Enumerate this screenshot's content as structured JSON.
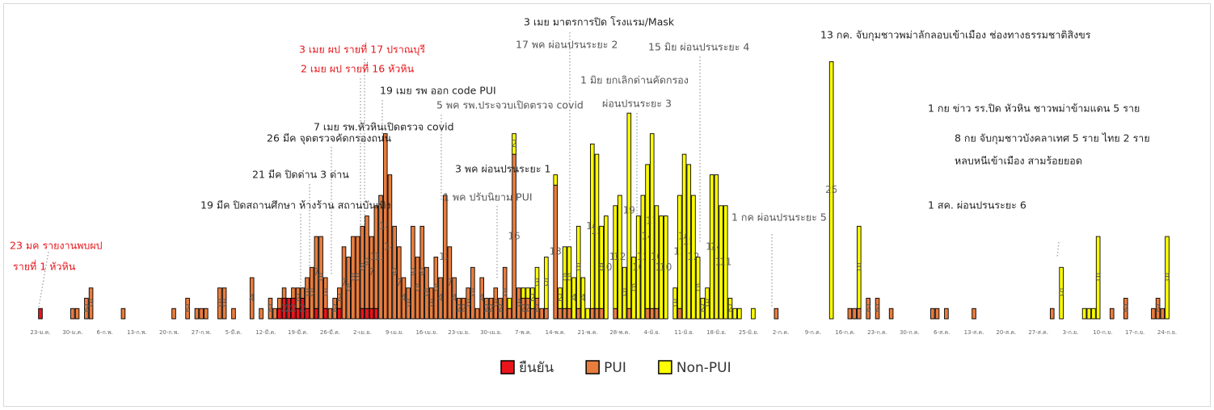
{
  "chart_data": {
    "type": "stacked-bar",
    "categories": [
      "23-ม.ค.",
      null,
      null,
      null,
      null,
      null,
      null,
      "30-ม.ค.",
      null,
      null,
      null,
      null,
      null,
      null,
      "6-ก.พ.",
      null,
      null,
      null,
      null,
      null,
      null,
      "13-ก.พ.",
      null,
      null,
      null,
      null,
      null,
      null,
      "20-ก.พ.",
      null,
      null,
      null,
      null,
      null,
      null,
      "27-ก.พ.",
      null,
      null,
      null,
      null,
      null,
      null,
      "5-มี.ค.",
      null,
      null,
      null,
      null,
      null,
      null,
      "12-มี.ค.",
      null,
      null,
      null,
      null,
      null,
      null,
      "19-มี.ค.",
      null,
      null,
      null,
      null,
      null,
      null,
      "26-มี.ค.",
      null,
      null,
      null,
      null,
      null,
      null,
      "2-เม.ย.",
      null,
      null,
      null,
      null,
      null,
      null,
      "9-เม.ย.",
      null,
      null,
      null,
      null,
      null,
      null,
      "16-เม.ย.",
      null,
      null,
      null,
      null,
      null,
      null,
      "23-เม.ย.",
      null,
      null,
      null,
      null,
      null,
      null,
      "30-เม.ย.",
      null,
      null,
      null,
      null,
      null,
      null,
      "7-พ.ค.",
      null,
      null,
      null,
      null,
      null,
      null,
      "14-พ.ค.",
      null,
      null,
      null,
      null,
      null,
      null,
      "21-พ.ค.",
      null,
      null,
      null,
      null,
      null,
      null,
      "28-พ.ค.",
      null,
      null,
      null,
      null,
      null,
      null,
      "4-มิ.ย.",
      null,
      null,
      null,
      null,
      null,
      null,
      "11-มิ.ย.",
      null,
      null,
      null,
      null,
      null,
      null,
      "18-มิ.ย.",
      null,
      null,
      null,
      null,
      null,
      null,
      "25-มิ.ย.",
      null,
      null,
      null,
      null,
      null,
      null,
      "2-ก.ค.",
      null,
      null,
      null,
      null,
      null,
      null,
      "9-ก.ค.",
      null,
      null,
      null,
      null,
      null,
      null,
      "16-ก.ค.",
      null,
      null,
      null,
      null,
      null,
      null,
      "23-ก.ค.",
      null,
      null,
      null,
      null,
      null,
      null,
      "30-ก.ค.",
      null,
      null,
      null,
      null,
      null,
      null,
      "6-ส.ค.",
      null,
      null,
      null,
      null,
      null,
      null,
      "13-ส.ค.",
      null,
      null,
      null,
      null,
      null,
      null,
      "20-ส.ค.",
      null,
      null,
      null,
      null,
      null,
      null,
      "27-ส.ค.",
      null,
      null,
      null,
      null,
      null,
      null,
      "3-ก.ย.",
      null,
      null,
      null,
      null,
      null,
      null,
      "10-ก.ย.",
      null,
      null,
      null,
      null,
      null,
      null,
      "17-ก.ย.",
      null,
      null,
      null,
      null,
      null,
      null,
      "24-ก.ย."
    ],
    "series": [
      {
        "name": "ยืนยัน",
        "color": "#e8151b",
        "values": [
          1,
          null,
          null,
          null,
          null,
          null,
          null,
          null,
          null,
          null,
          null,
          null,
          null,
          null,
          null,
          null,
          null,
          null,
          null,
          null,
          null,
          null,
          null,
          null,
          null,
          null,
          null,
          null,
          null,
          null,
          null,
          null,
          null,
          null,
          null,
          null,
          null,
          null,
          null,
          null,
          null,
          null,
          null,
          null,
          null,
          null,
          null,
          null,
          null,
          null,
          null,
          null,
          1,
          2,
          2,
          2,
          1,
          2,
          1,
          null,
          1,
          null,
          1,
          null,
          null,
          1,
          null,
          null,
          null,
          null,
          1,
          1,
          1,
          1,
          null,
          null,
          null,
          null,
          null,
          null,
          null,
          null,
          null,
          null,
          null,
          null,
          null,
          null,
          null,
          null,
          null,
          null,
          null,
          null,
          null,
          null,
          null,
          null,
          null,
          null,
          null,
          null,
          null,
          null,
          null,
          null,
          null,
          null,
          null,
          null,
          null,
          null,
          null,
          null,
          null,
          null,
          null,
          null,
          null,
          null,
          null,
          null,
          null,
          null,
          null,
          null,
          null,
          null,
          null,
          null,
          null,
          null,
          null,
          null,
          null,
          null,
          null,
          null,
          null,
          null,
          null,
          null,
          null,
          null,
          null,
          null,
          null,
          null,
          null,
          null,
          null,
          null,
          null,
          null,
          null,
          null,
          null,
          null,
          null,
          null,
          null,
          null,
          null,
          null,
          null,
          null,
          null,
          null,
          null,
          null,
          null,
          null,
          null,
          null,
          null,
          null,
          null,
          null,
          null,
          null,
          null,
          null,
          null,
          null,
          null,
          null,
          null,
          null,
          null,
          null,
          null,
          null,
          null,
          null,
          null,
          null,
          null,
          null,
          null,
          null,
          null,
          null,
          null,
          null,
          null,
          null,
          null,
          null,
          null,
          null,
          null,
          null,
          null,
          null,
          null,
          null,
          null,
          null,
          null,
          null,
          null,
          null,
          null,
          null,
          null,
          null,
          null,
          null,
          null,
          null,
          null,
          null,
          null,
          null,
          null,
          null,
          null,
          null,
          null,
          null,
          null,
          null,
          null,
          null,
          null,
          null
        ]
      },
      {
        "name": "PUI",
        "color": "#e87d3e",
        "values": [
          null,
          null,
          null,
          null,
          null,
          null,
          null,
          1,
          1,
          null,
          2,
          3,
          null,
          null,
          null,
          null,
          null,
          null,
          1,
          null,
          null,
          null,
          null,
          null,
          null,
          null,
          null,
          null,
          null,
          1,
          null,
          null,
          2,
          null,
          1,
          1,
          1,
          null,
          null,
          3,
          3,
          null,
          1,
          null,
          null,
          null,
          4,
          null,
          1,
          null,
          2,
          1,
          1,
          1,
          null,
          1,
          2,
          1,
          3,
          5,
          7,
          8,
          3,
          1,
          2,
          2,
          7,
          6,
          8,
          8,
          8,
          9,
          7,
          10,
          12,
          18,
          14,
          9,
          7,
          4,
          3,
          9,
          6,
          9,
          5,
          3,
          6,
          4,
          12,
          7,
          4,
          2,
          2,
          3,
          5,
          1,
          4,
          2,
          2,
          3,
          2,
          5,
          1,
          16,
          3,
          2,
          2,
          1,
          2,
          1,
          1,
          null,
          13,
          1,
          1,
          1,
          null,
          1,
          null,
          null,
          1,
          1,
          1,
          null,
          null,
          1,
          null,
          null,
          1,
          null,
          null,
          null,
          1,
          1,
          1,
          null,
          null,
          null,
          null,
          1,
          null,
          null,
          null,
          null,
          null,
          null,
          null,
          null,
          null,
          null,
          null,
          null,
          null,
          null,
          null,
          null,
          null,
          null,
          null,
          null,
          1,
          null,
          null,
          null,
          null,
          null,
          null,
          null,
          null,
          null,
          null,
          null,
          null,
          null,
          null,
          null,
          1,
          1,
          1,
          null,
          2,
          null,
          2,
          null,
          null,
          1,
          null,
          null,
          null,
          null,
          null,
          null,
          null,
          null,
          1,
          1,
          null,
          1,
          null,
          null,
          null,
          null,
          null,
          1,
          null,
          null,
          null,
          null,
          null,
          null,
          null,
          null,
          null,
          null,
          null,
          null,
          null,
          null,
          null,
          null,
          1,
          null,
          null,
          null,
          null,
          null,
          null,
          null,
          null,
          null,
          null,
          null,
          null,
          1,
          null,
          null,
          2,
          null,
          null,
          null,
          null,
          null,
          1,
          2,
          1,
          null
        ]
      },
      {
        "name": "Non-PUI",
        "color": "#ffff00",
        "values": [
          null,
          null,
          null,
          null,
          null,
          null,
          null,
          null,
          null,
          null,
          null,
          null,
          null,
          null,
          null,
          null,
          null,
          null,
          null,
          null,
          null,
          null,
          null,
          null,
          null,
          null,
          null,
          null,
          null,
          null,
          null,
          null,
          null,
          null,
          null,
          null,
          null,
          null,
          null,
          null,
          null,
          null,
          null,
          null,
          null,
          null,
          null,
          null,
          null,
          null,
          null,
          null,
          null,
          null,
          null,
          null,
          null,
          null,
          null,
          null,
          null,
          null,
          null,
          null,
          null,
          null,
          null,
          null,
          null,
          null,
          null,
          null,
          null,
          null,
          null,
          null,
          null,
          null,
          null,
          null,
          null,
          null,
          null,
          null,
          null,
          null,
          null,
          null,
          null,
          null,
          null,
          null,
          null,
          null,
          null,
          null,
          null,
          null,
          null,
          null,
          null,
          null,
          1,
          2,
          null,
          1,
          1,
          2,
          3,
          null,
          5,
          null,
          1,
          2,
          6,
          6,
          4,
          8,
          4,
          1,
          16,
          15,
          8,
          10,
          null,
          10,
          12,
          5,
          19,
          6,
          10,
          12,
          14,
          17,
          10,
          10,
          10,
          null,
          3,
          11,
          16,
          15,
          12,
          6,
          2,
          3,
          14,
          14,
          11,
          11,
          2,
          1,
          1,
          null,
          null,
          1,
          null,
          null,
          null,
          null,
          null,
          null,
          null,
          null,
          null,
          null,
          null,
          null,
          null,
          null,
          null,
          null,
          25,
          null,
          null,
          null,
          null,
          null,
          8,
          null,
          null,
          null,
          null,
          null,
          null,
          null,
          null,
          null,
          null,
          null,
          null,
          null,
          null,
          null,
          null,
          null,
          null,
          null,
          null,
          null,
          null,
          null,
          null,
          null,
          null,
          null,
          null,
          null,
          null,
          null,
          null,
          null,
          null,
          null,
          null,
          null,
          null,
          null,
          null,
          null,
          null,
          null,
          5,
          null,
          null,
          null,
          null,
          1,
          1,
          1,
          8,
          null,
          null,
          null,
          null,
          null,
          null,
          null,
          null,
          null,
          null,
          null,
          null,
          null,
          null,
          8
        ]
      }
    ],
    "ylim": [
      0,
      31
    ],
    "annotations": [
      {
        "text": "23 มค รายงานพบผป",
        "color": "#e8151b"
      },
      {
        "text": "รายที่ 1 หัวหิน",
        "color": "#e8151b"
      },
      {
        "text": "19 มีค ปิดสถานศึกษา ห้างร้าน สถานบันเทิง",
        "color": "#222222"
      },
      {
        "text": "21 มีค ปิดด่าน 3 ด่าน",
        "color": "#222222"
      },
      {
        "text": "26 มีค จุดตรวจคัดกรองถนน",
        "color": "#222222"
      },
      {
        "text": "7 เมย รพ.หัวหินเปิดตรวจ covid",
        "color": "#222222"
      },
      {
        "text": "3 เมย ผป รายที่ 17 ปราณบุรี",
        "color": "#e8151b"
      },
      {
        "text": "2 เมย ผป รายที่ 16 หัวหิน",
        "color": "#e8151b"
      },
      {
        "text": "19 เมย รพ ออก code PUI",
        "color": "#222222"
      },
      {
        "text": "5 พค รพ.ประจวบเปิดตรวจ covid",
        "color": "#555555"
      },
      {
        "text": "1 พค ปรับนิยาม PUI",
        "color": "#555555"
      },
      {
        "text": "3 พค ผ่อนปรนระยะ 1",
        "color": "#222222"
      },
      {
        "text": "3 เมย มาตรการปิด โรงแรม/Mask",
        "color": "#222222"
      },
      {
        "text": "17 พค ผ่อนปรนระยะ 2",
        "color": "#555555"
      },
      {
        "text": "1 มิย ยกเลิกด่านคัดกรอง",
        "color": "#555555"
      },
      {
        "text": "ผ่อนปรนระยะ 3",
        "color": "#555555"
      },
      {
        "text": "15 มิย ผ่อนปรนระยะ 4",
        "color": "#555555"
      },
      {
        "text": "1 กค ผ่อนปรนระยะ 5",
        "color": "#555555"
      },
      {
        "text": "13 กค. จับกุมชาวพม่าลักลอบเข้าเมือง ช่องทางธรรมชาติสิงขร",
        "color": "#222222"
      },
      {
        "text": "1 กย ข่าว รร.ปิด หัวหิน ชาวพม่าข้ามแดน 5 ราย",
        "color": "#222222"
      },
      {
        "text": "8 กย จับกุมชาวบังคลาเทศ 5 ราย ไทย 2 ราย",
        "color": "#222222"
      },
      {
        "text": "หลบหนีเข้าเมือง สามร้อยยอด",
        "color": "#222222"
      },
      {
        "text": "1 สค. ผ่อนปรนระยะ 6",
        "color": "#222222"
      }
    ]
  }
}
